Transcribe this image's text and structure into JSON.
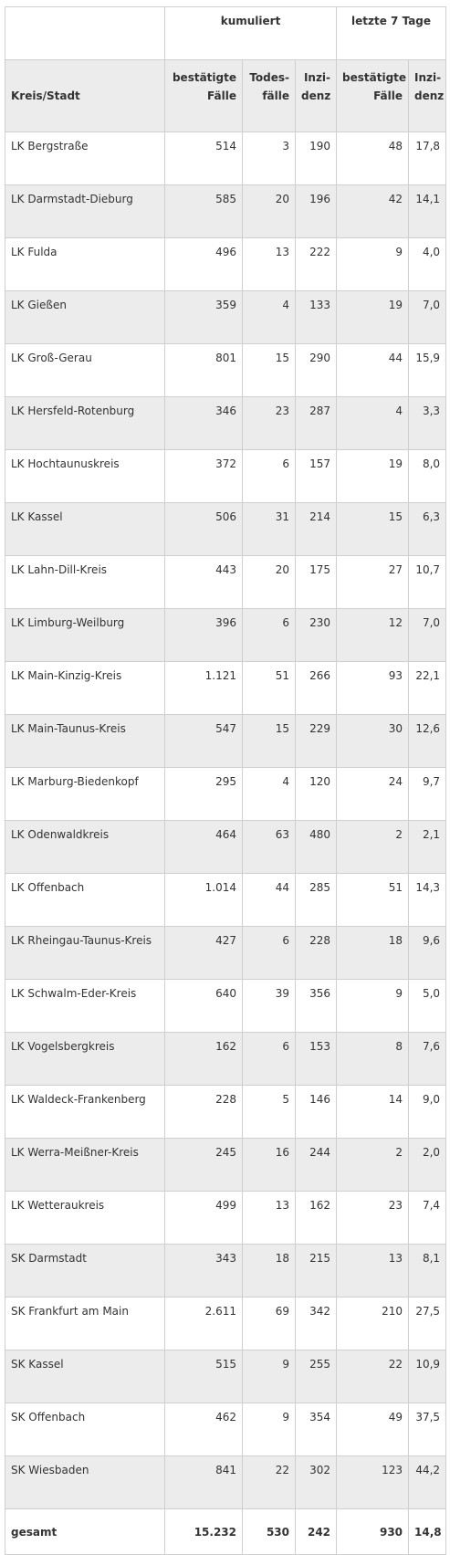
{
  "header": {
    "group_cumulative": "kumuliert",
    "group_last7": "letzte 7 Tage",
    "col_region": "Kreis/Stadt",
    "col_cases": "bestätigte Fälle",
    "col_deaths": "Todes-fälle",
    "col_incidence": "Inzi-denz",
    "col_cases_7d": "bestätigte Fälle",
    "col_incidence_7d": "Inzi-denz"
  },
  "rows": [
    {
      "region": "LK Bergstraße",
      "cases": "514",
      "deaths": "3",
      "incidence": "190",
      "cases7": "48",
      "inc7": "17,8"
    },
    {
      "region": "LK Darmstadt-Dieburg",
      "cases": "585",
      "deaths": "20",
      "incidence": "196",
      "cases7": "42",
      "inc7": "14,1"
    },
    {
      "region": "LK Fulda",
      "cases": "496",
      "deaths": "13",
      "incidence": "222",
      "cases7": "9",
      "inc7": "4,0"
    },
    {
      "region": "LK Gießen",
      "cases": "359",
      "deaths": "4",
      "incidence": "133",
      "cases7": "19",
      "inc7": "7,0"
    },
    {
      "region": "LK Groß-Gerau",
      "cases": "801",
      "deaths": "15",
      "incidence": "290",
      "cases7": "44",
      "inc7": "15,9"
    },
    {
      "region": "LK Hersfeld-Rotenburg",
      "cases": "346",
      "deaths": "23",
      "incidence": "287",
      "cases7": "4",
      "inc7": "3,3"
    },
    {
      "region": "LK Hochtaunuskreis",
      "cases": "372",
      "deaths": "6",
      "incidence": "157",
      "cases7": "19",
      "inc7": "8,0"
    },
    {
      "region": "LK Kassel",
      "cases": "506",
      "deaths": "31",
      "incidence": "214",
      "cases7": "15",
      "inc7": "6,3"
    },
    {
      "region": "LK Lahn-Dill-Kreis",
      "cases": "443",
      "deaths": "20",
      "incidence": "175",
      "cases7": "27",
      "inc7": "10,7"
    },
    {
      "region": "LK Limburg-Weilburg",
      "cases": "396",
      "deaths": "6",
      "incidence": "230",
      "cases7": "12",
      "inc7": "7,0"
    },
    {
      "region": "LK Main-Kinzig-Kreis",
      "cases": "1.121",
      "deaths": "51",
      "incidence": "266",
      "cases7": "93",
      "inc7": "22,1"
    },
    {
      "region": "LK Main-Taunus-Kreis",
      "cases": "547",
      "deaths": "15",
      "incidence": "229",
      "cases7": "30",
      "inc7": "12,6"
    },
    {
      "region": "LK Marburg-Biedenkopf",
      "cases": "295",
      "deaths": "4",
      "incidence": "120",
      "cases7": "24",
      "inc7": "9,7"
    },
    {
      "region": "LK Odenwaldkreis",
      "cases": "464",
      "deaths": "63",
      "incidence": "480",
      "cases7": "2",
      "inc7": "2,1"
    },
    {
      "region": "LK Offenbach",
      "cases": "1.014",
      "deaths": "44",
      "incidence": "285",
      "cases7": "51",
      "inc7": "14,3"
    },
    {
      "region": "LK Rheingau-Taunus-Kreis",
      "cases": "427",
      "deaths": "6",
      "incidence": "228",
      "cases7": "18",
      "inc7": "9,6"
    },
    {
      "region": "LK Schwalm-Eder-Kreis",
      "cases": "640",
      "deaths": "39",
      "incidence": "356",
      "cases7": "9",
      "inc7": "5,0"
    },
    {
      "region": "LK Vogelsbergkreis",
      "cases": "162",
      "deaths": "6",
      "incidence": "153",
      "cases7": "8",
      "inc7": "7,6"
    },
    {
      "region": "LK Waldeck-Frankenberg",
      "cases": "228",
      "deaths": "5",
      "incidence": "146",
      "cases7": "14",
      "inc7": "9,0"
    },
    {
      "region": "LK Werra-Meißner-Kreis",
      "cases": "245",
      "deaths": "16",
      "incidence": "244",
      "cases7": "2",
      "inc7": "2,0"
    },
    {
      "region": "LK Wetteraukreis",
      "cases": "499",
      "deaths": "13",
      "incidence": "162",
      "cases7": "23",
      "inc7": "7,4"
    },
    {
      "region": "SK Darmstadt",
      "cases": "343",
      "deaths": "18",
      "incidence": "215",
      "cases7": "13",
      "inc7": "8,1"
    },
    {
      "region": "SK Frankfurt am Main",
      "cases": "2.611",
      "deaths": "69",
      "incidence": "342",
      "cases7": "210",
      "inc7": "27,5"
    },
    {
      "region": "SK Kassel",
      "cases": "515",
      "deaths": "9",
      "incidence": "255",
      "cases7": "22",
      "inc7": "10,9"
    },
    {
      "region": "SK Offenbach",
      "cases": "462",
      "deaths": "9",
      "incidence": "354",
      "cases7": "49",
      "inc7": "37,5"
    },
    {
      "region": "SK Wiesbaden",
      "cases": "841",
      "deaths": "22",
      "incidence": "302",
      "cases7": "123",
      "inc7": "44,2"
    }
  ],
  "total": {
    "region": "gesamt",
    "cases": "15.232",
    "deaths": "530",
    "incidence": "242",
    "cases7": "930",
    "inc7": "14,8"
  }
}
